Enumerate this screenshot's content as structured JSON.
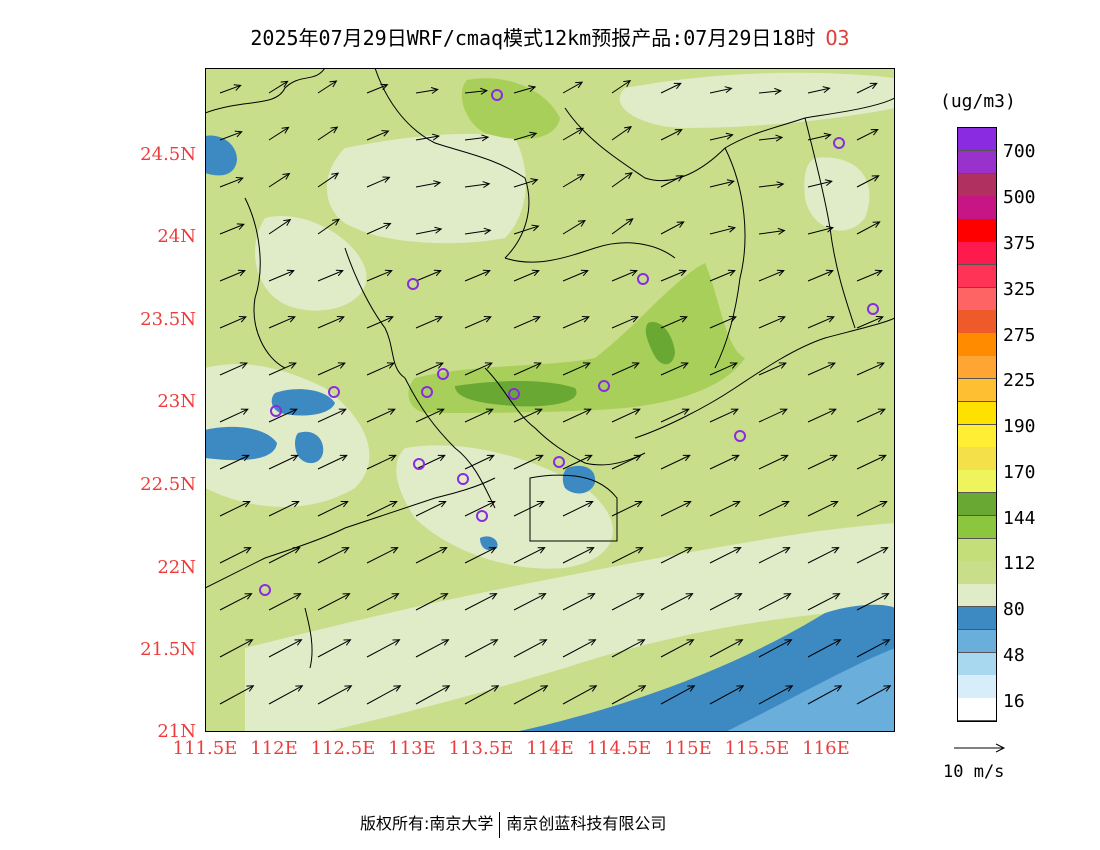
{
  "title": {
    "main": "2025年07月29日WRF/cmaq模式12km预报产品:07月29日18时",
    "species": "O3"
  },
  "axes": {
    "y_ticks": [
      "24.5N",
      "24N",
      "23.5N",
      "23N",
      "22.5N",
      "22N",
      "21.5N",
      "21N"
    ],
    "x_ticks": [
      "111.5E",
      "112E",
      "112.5E",
      "113E",
      "113.5E",
      "114E",
      "114.5E",
      "115E",
      "115.5E",
      "116E"
    ]
  },
  "legend": {
    "unit": "(ug/m3)",
    "labels": [
      "700",
      "500",
      "375",
      "325",
      "275",
      "225",
      "190",
      "170",
      "144",
      "112",
      "80",
      "48",
      "16"
    ],
    "colors": [
      "#8a2be2",
      "#9932cc",
      "#b03060",
      "#c71585",
      "#ff0000",
      "#ff1a4d",
      "#ff3355",
      "#ff6464",
      "#ee5a2a",
      "#ff8c00",
      "#ffa533",
      "#ffbf33",
      "#ffe100",
      "#ffee33",
      "#f4e14a",
      "#eef55c",
      "#6aa834",
      "#8cc63f",
      "#c4de79",
      "#c8de8a",
      "#e0ebc8",
      "#3d89c2",
      "#6aaedc",
      "#a7d8f0",
      "#d7eefa",
      "#ffffff"
    ]
  },
  "wind_reference": {
    "label": "10 m/s"
  },
  "footer": {
    "left": "版权所有:南京大学",
    "right": "南京创蓝科技有限公司"
  },
  "colors": {
    "base_fill": "#c8de8a",
    "light_fill": "#e0ebc8",
    "mid_green": "#a8cf5a",
    "dark_green": "#6aa834",
    "blue": "#3d89c2",
    "light_blue": "#6aaedc",
    "axis_label": "#ee3b3b",
    "station_marker": "#8a2be2"
  }
}
